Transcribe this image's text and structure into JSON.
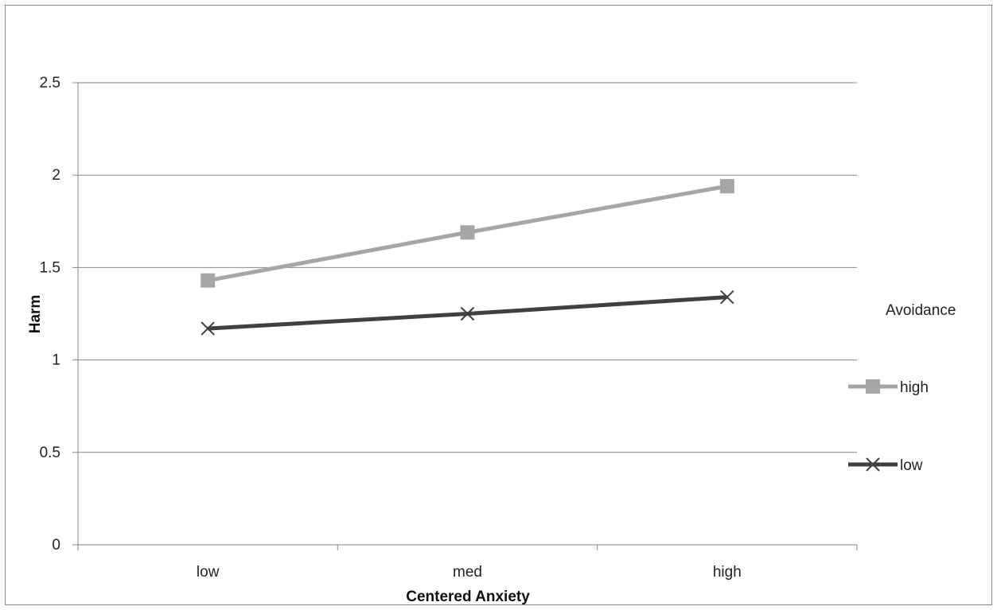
{
  "chart_data": {
    "type": "line",
    "categories": [
      "low",
      "med",
      "high"
    ],
    "series": [
      {
        "name": "high",
        "values": [
          1.43,
          1.69,
          1.94
        ],
        "color": "#a6a6a6",
        "marker": "square"
      },
      {
        "name": "low",
        "values": [
          1.17,
          1.25,
          1.34
        ],
        "color": "#404040",
        "marker": "x"
      }
    ],
    "title": "",
    "xlabel": "Centered Anxiety",
    "ylabel": "Harm",
    "ylim": [
      0,
      2.5
    ],
    "yticks": [
      "0",
      "0.5",
      "1",
      "1.5",
      "2",
      "2.5"
    ],
    "legend_title": "Avoidance",
    "legend_position": "right",
    "grid": true
  }
}
